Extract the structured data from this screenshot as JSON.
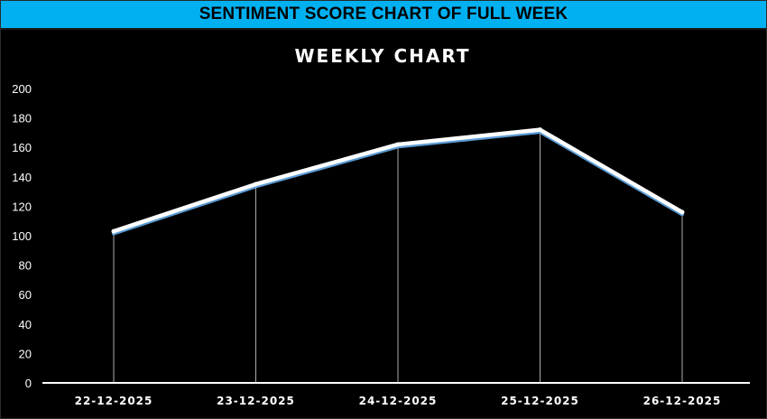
{
  "banner": {
    "title": "SENTIMENT SCORE CHART OF FULL WEEK"
  },
  "chart_data": {
    "type": "line",
    "title": "WEEKLY CHART",
    "xlabel": "",
    "ylabel": "",
    "categories": [
      "22-12-2025",
      "23-12-2025",
      "24-12-2025",
      "25-12-2025",
      "26-12-2025"
    ],
    "series": [
      {
        "values": [
          103,
          135,
          162,
          172,
          116
        ]
      }
    ],
    "ylim": [
      0,
      200
    ],
    "yticks": [
      "0",
      "20",
      "40",
      "60",
      "80",
      "100",
      "120",
      "140",
      "160",
      "180",
      "200"
    ],
    "drop_lines": true,
    "grid": false,
    "legend": "none",
    "colors": {
      "background": "#000000",
      "line": "#ffffff",
      "line_shadow": "#5b9bd5",
      "axis": "#ffffff",
      "banner": "#00b0f0"
    }
  }
}
